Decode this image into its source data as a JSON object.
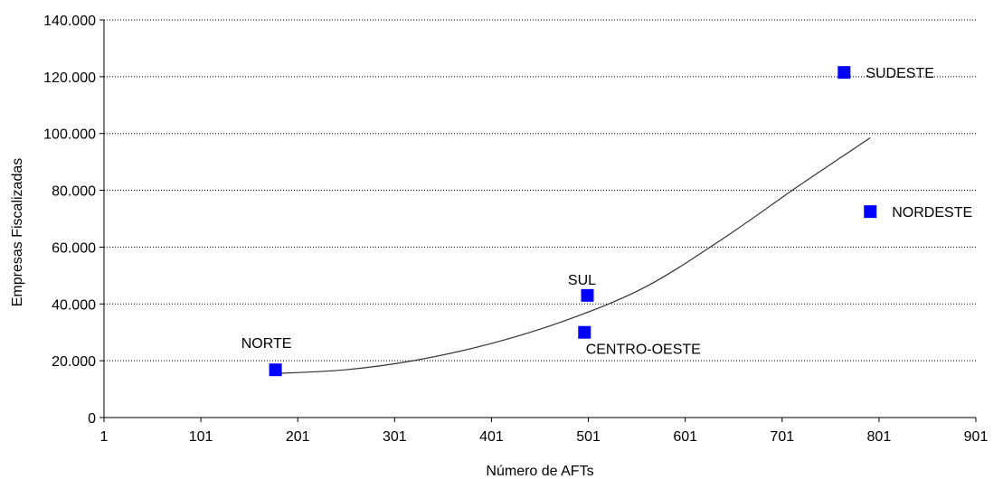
{
  "chart_data": {
    "type": "scatter",
    "xlabel": "Número de AFTs",
    "ylabel": "Empresas Fiscalizadas",
    "xlim": [
      1,
      901
    ],
    "ylim": [
      0,
      140000
    ],
    "x_ticks": [
      1,
      101,
      201,
      301,
      401,
      501,
      601,
      701,
      801,
      901
    ],
    "x_tick_labels": [
      "1",
      "101",
      "201",
      "301",
      "401",
      "501",
      "601",
      "701",
      "801",
      "901"
    ],
    "y_ticks": [
      0,
      20000,
      40000,
      60000,
      80000,
      100000,
      120000,
      140000
    ],
    "y_tick_labels": [
      "0",
      "20.000",
      "40.000",
      "60.000",
      "80.000",
      "100.000",
      "120.000",
      "140.000"
    ],
    "grid": "horizontal dotted",
    "marker_color": "#0000ff",
    "trendline_color": "#333333",
    "points": [
      {
        "label": "NORTE",
        "x": 178,
        "y": 16800
      },
      {
        "label": "SUL",
        "x": 500,
        "y": 43000
      },
      {
        "label": "CENTRO-OESTE",
        "x": 497,
        "y": 30000
      },
      {
        "label": "SUDESTE",
        "x": 765,
        "y": 121500
      },
      {
        "label": "NORDESTE",
        "x": 792,
        "y": 72500
      }
    ],
    "trendline": {
      "type": "polynomial",
      "x": [
        178,
        250,
        320,
        400,
        480,
        560,
        640,
        720,
        792
      ],
      "y": [
        15500,
        16800,
        20000,
        26000,
        34500,
        46000,
        63000,
        82000,
        98500
      ]
    }
  }
}
